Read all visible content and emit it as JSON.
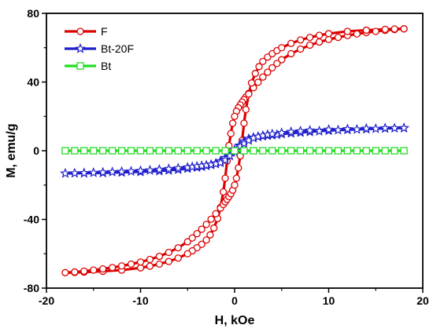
{
  "chart_data": {
    "type": "line",
    "xlabel": "H, kOe",
    "ylabel": "M, emu/g",
    "xlim": [
      -20,
      20
    ],
    "ylim": [
      -80,
      80
    ],
    "x_ticks": [
      -20,
      -10,
      0,
      10,
      20
    ],
    "y_ticks": [
      -80,
      -40,
      0,
      40,
      80
    ],
    "grid": false,
    "legend_position": "top-left",
    "series": [
      {
        "name": "F",
        "color": "#dd0000",
        "marker": "circle",
        "x": [
          18.0,
          17.0,
          16.0,
          15.0,
          14.0,
          13.0,
          12.0,
          11.0,
          10.0,
          9.0,
          8.0,
          7.0,
          6.0,
          5.0,
          4.5,
          4.0,
          3.5,
          3.0,
          2.5,
          2.0,
          1.5,
          1.2,
          1.0,
          0.8,
          0.6,
          0.4,
          0.2,
          0.0,
          -0.2,
          -0.4,
          -0.6,
          -0.8,
          -1.0,
          -1.2,
          -1.5,
          -1.8,
          -2.2,
          -2.6,
          -3.0,
          -3.5,
          -4.0,
          -4.5,
          -5.0,
          -6.0,
          -7.0,
          -8.0,
          -9.0,
          -10.0,
          -12.0,
          -14.0,
          -16.0,
          -17.0,
          -18.0,
          -17.0,
          -16.0,
          -15.0,
          -14.0,
          -13.0,
          -12.0,
          -11.0,
          -10.0,
          -9.0,
          -8.0,
          -7.0,
          -6.0,
          -5.0,
          -4.5,
          -4.0,
          -3.5,
          -3.0,
          -2.5,
          -2.0,
          -1.5,
          -1.2,
          -1.0,
          -0.8,
          -0.6,
          -0.4,
          -0.2,
          0.0,
          0.2,
          0.4,
          0.6,
          0.8,
          1.0,
          1.2,
          1.5,
          1.8,
          2.2,
          2.6,
          3.0,
          3.5,
          4.0,
          4.5,
          5.0,
          6.0,
          7.0,
          8.0,
          9.0,
          10.0,
          12.0,
          14.0,
          16.0,
          17.0,
          18.0
        ],
        "y": [
          71.0,
          70.6,
          70.1,
          69.5,
          68.8,
          68.0,
          67.1,
          66.0,
          64.8,
          63.3,
          61.5,
          59.2,
          56.5,
          53.0,
          50.8,
          48.3,
          45.7,
          42.9,
          39.9,
          36.7,
          33.4,
          31.3,
          29.8,
          28.3,
          26.7,
          25.0,
          23.0,
          20.0,
          16.0,
          10.0,
          3.0,
          -6.0,
          -16.0,
          -24.0,
          -33.0,
          -39.5,
          -45.0,
          -49.0,
          -52.0,
          -54.5,
          -56.5,
          -58.3,
          -60.0,
          -62.5,
          -64.5,
          -66.0,
          -67.2,
          -68.2,
          -69.5,
          -70.2,
          -70.7,
          -70.9,
          -71.0,
          -70.6,
          -70.1,
          -69.5,
          -68.8,
          -68.0,
          -67.1,
          -66.0,
          -64.8,
          -63.3,
          -61.5,
          -59.2,
          -56.5,
          -53.0,
          -50.8,
          -48.3,
          -45.7,
          -42.9,
          -39.9,
          -36.7,
          -33.4,
          -31.3,
          -29.8,
          -28.3,
          -26.7,
          -25.0,
          -23.0,
          -20.0,
          -16.0,
          -10.0,
          -3.0,
          6.0,
          16.0,
          24.0,
          33.0,
          39.5,
          45.0,
          49.0,
          52.0,
          54.5,
          56.5,
          58.3,
          60.0,
          62.5,
          64.5,
          66.0,
          67.2,
          68.2,
          69.5,
          70.2,
          70.7,
          70.9,
          71.0
        ]
      },
      {
        "name": "Bt-20F",
        "color": "#1f1fcc",
        "marker": "star",
        "x": [
          18.0,
          17.0,
          16.0,
          15.0,
          14.0,
          13.0,
          12.0,
          11.0,
          10.0,
          9.0,
          8.0,
          7.0,
          6.0,
          5.0,
          4.5,
          4.0,
          3.5,
          3.0,
          2.5,
          2.0,
          1.5,
          1.0,
          0.5,
          0.0,
          -0.3,
          -0.6,
          -1.0,
          -1.5,
          -2.0,
          -2.5,
          -3.0,
          -3.5,
          -4.0,
          -5.0,
          -6.0,
          -7.0,
          -8.0,
          -10.0,
          -12.0,
          -14.0,
          -16.0,
          -18.0,
          -17.0,
          -16.0,
          -15.0,
          -14.0,
          -13.0,
          -12.0,
          -11.0,
          -10.0,
          -9.0,
          -8.0,
          -7.0,
          -6.0,
          -5.0,
          -4.5,
          -4.0,
          -3.5,
          -3.0,
          -2.5,
          -2.0,
          -1.5,
          -1.0,
          -0.5,
          0.0,
          0.3,
          0.6,
          1.0,
          1.5,
          2.0,
          2.5,
          3.0,
          3.5,
          4.0,
          5.0,
          6.0,
          7.0,
          8.0,
          10.0,
          12.0,
          14.0,
          16.0,
          18.0
        ],
        "y": [
          13.2,
          13.1,
          13.0,
          12.8,
          12.6,
          12.4,
          12.2,
          12.0,
          11.7,
          11.4,
          11.0,
          10.6,
          10.2,
          9.7,
          9.4,
          9.1,
          8.8,
          8.5,
          8.1,
          7.7,
          7.0,
          5.5,
          3.0,
          0.5,
          -1.0,
          -2.6,
          -4.2,
          -6.0,
          -7.4,
          -8.2,
          -8.8,
          -9.3,
          -9.7,
          -10.4,
          -11.0,
          -11.4,
          -11.8,
          -12.3,
          -12.6,
          -12.9,
          -13.1,
          -13.2,
          -13.1,
          -13.0,
          -12.8,
          -12.6,
          -12.4,
          -12.2,
          -12.0,
          -11.7,
          -11.4,
          -11.0,
          -10.6,
          -10.2,
          -9.7,
          -9.4,
          -9.1,
          -8.8,
          -8.5,
          -8.1,
          -7.7,
          -7.0,
          -5.5,
          -3.0,
          -0.5,
          1.0,
          2.6,
          4.2,
          6.0,
          7.4,
          8.2,
          8.8,
          9.3,
          9.7,
          10.4,
          11.0,
          11.4,
          11.8,
          12.3,
          12.6,
          12.9,
          13.1,
          13.2
        ]
      },
      {
        "name": "Bt",
        "color": "#22dd22",
        "marker": "square",
        "x": [
          -18,
          -17,
          -16,
          -15,
          -14,
          -13,
          -12,
          -11,
          -10,
          -9,
          -8,
          -7,
          -6,
          -5,
          -4,
          -3,
          -2,
          -1,
          0,
          1,
          2,
          3,
          4,
          5,
          6,
          7,
          8,
          9,
          10,
          11,
          12,
          13,
          14,
          15,
          16,
          17,
          18
        ],
        "y": [
          0,
          0,
          0,
          0,
          0,
          0,
          0,
          0,
          0,
          0,
          0,
          0,
          0,
          0,
          0,
          0,
          0,
          0,
          0,
          0,
          0,
          0,
          0,
          0,
          0,
          0,
          0,
          0,
          0,
          0,
          0,
          0,
          0,
          0,
          0,
          0,
          0
        ]
      }
    ]
  }
}
